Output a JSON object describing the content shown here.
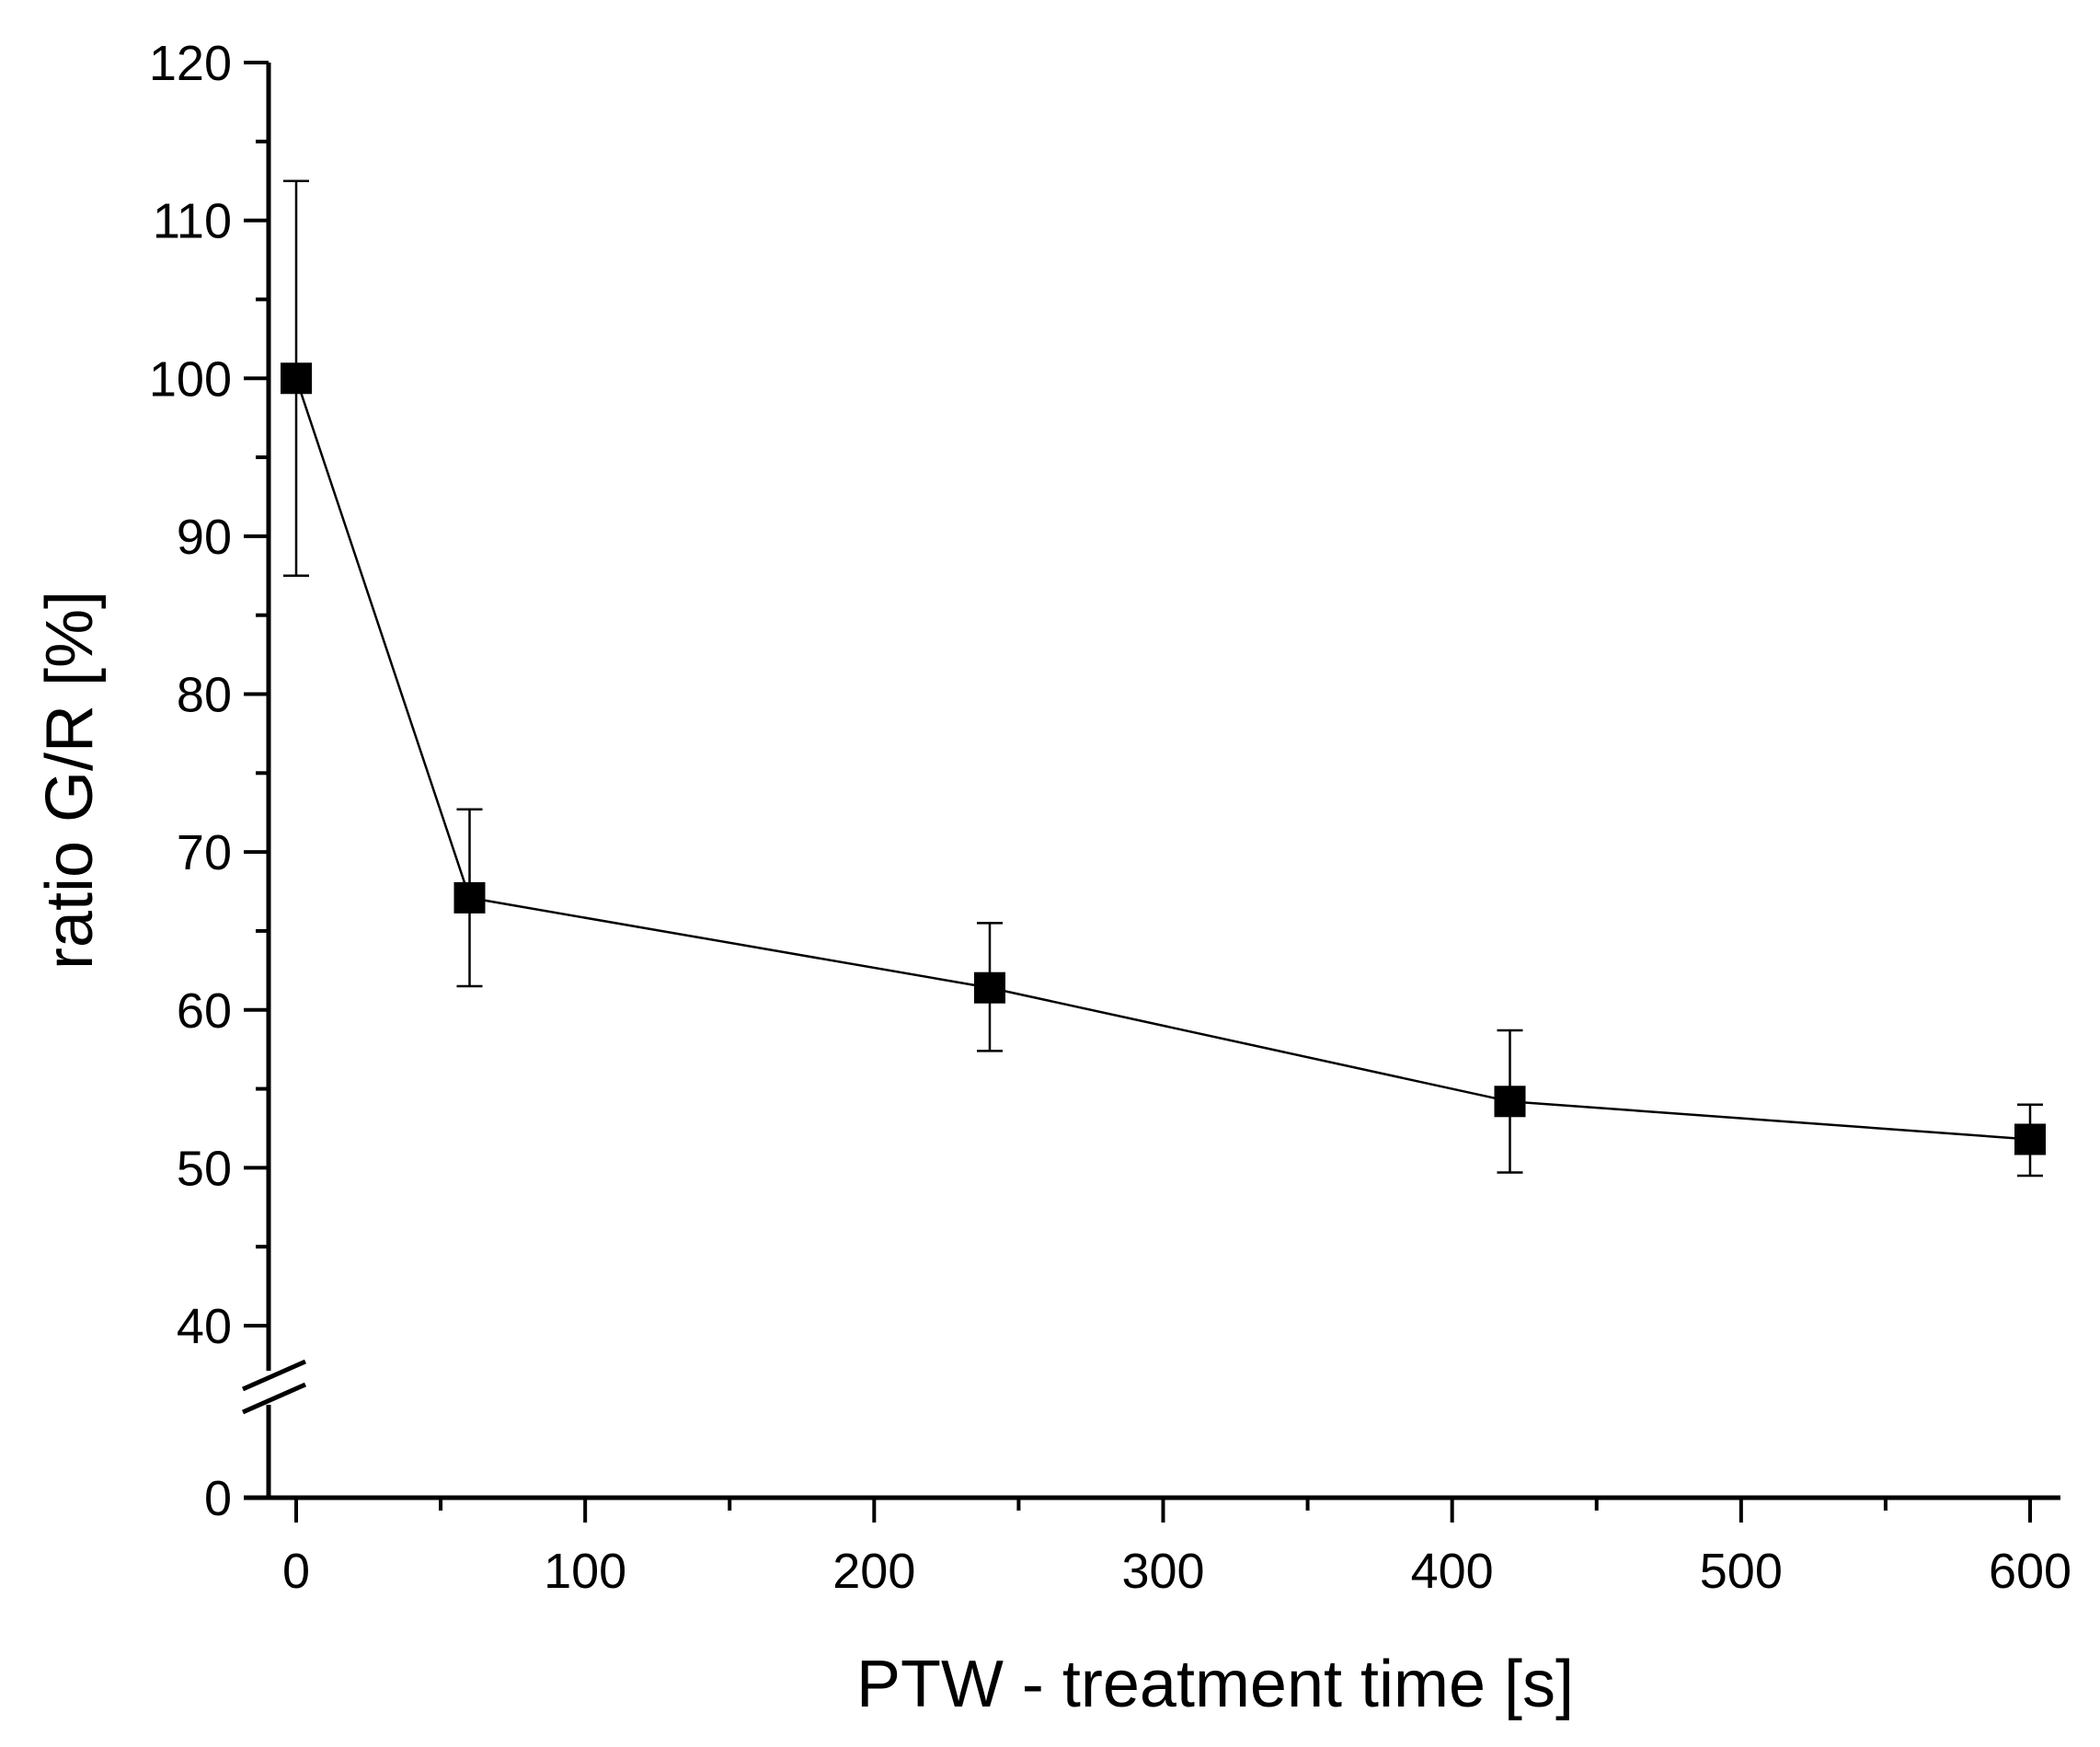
{
  "chart_data": {
    "type": "line",
    "title": "",
    "xlabel": "PTW - treatment time [s]",
    "ylabel": "ratio G/R [%]",
    "xlim": [
      -10,
      610
    ],
    "ylim": [
      0,
      120
    ],
    "y_break": [
      35,
      38
    ],
    "x_ticks": [
      0,
      100,
      200,
      300,
      400,
      500,
      600
    ],
    "x_minor_ticks": [
      50,
      150,
      250,
      350,
      450,
      550
    ],
    "y_ticks": [
      0,
      40,
      50,
      60,
      70,
      80,
      90,
      100,
      110,
      120
    ],
    "y_minor_ticks": [
      45,
      55,
      65,
      75,
      85,
      95,
      105,
      115
    ],
    "grid": false,
    "series": [
      {
        "name": "ratio G/R",
        "marker": "square",
        "x": [
          0,
          60,
          240,
          420,
          600
        ],
        "y": [
          100,
          67.1,
          61.4,
          54.2,
          51.8
        ],
        "err_low": [
          87.5,
          61.5,
          57.4,
          49.7,
          49.5
        ],
        "err_high": [
          112.5,
          72.7,
          65.5,
          58.7,
          54.0
        ]
      }
    ]
  }
}
